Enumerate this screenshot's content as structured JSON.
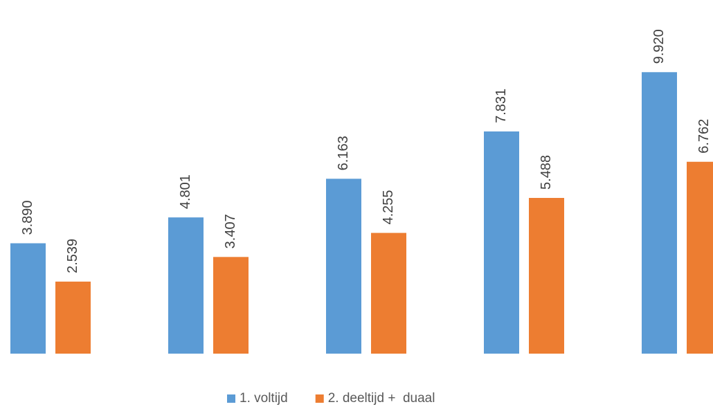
{
  "chart_data": {
    "type": "bar",
    "categories": [
      null,
      null,
      null,
      null,
      null
    ],
    "series": [
      {
        "name": "1. voltijd",
        "color": "#5b9bd5",
        "values": [
          3890,
          4801,
          6163,
          7831,
          9920
        ],
        "value_labels": [
          "3.890",
          "4.801",
          "6.163",
          "7.831",
          "9.920"
        ]
      },
      {
        "name": "2. deeltijd +  duaal",
        "color": "#ed7d31",
        "values": [
          2539,
          3407,
          4255,
          5488,
          6762
        ],
        "value_labels": [
          "2.539",
          "3.407",
          "4.255",
          "5.488",
          "6.762"
        ]
      }
    ],
    "ylim": [
      0,
      10000
    ],
    "legend": "bottom"
  }
}
